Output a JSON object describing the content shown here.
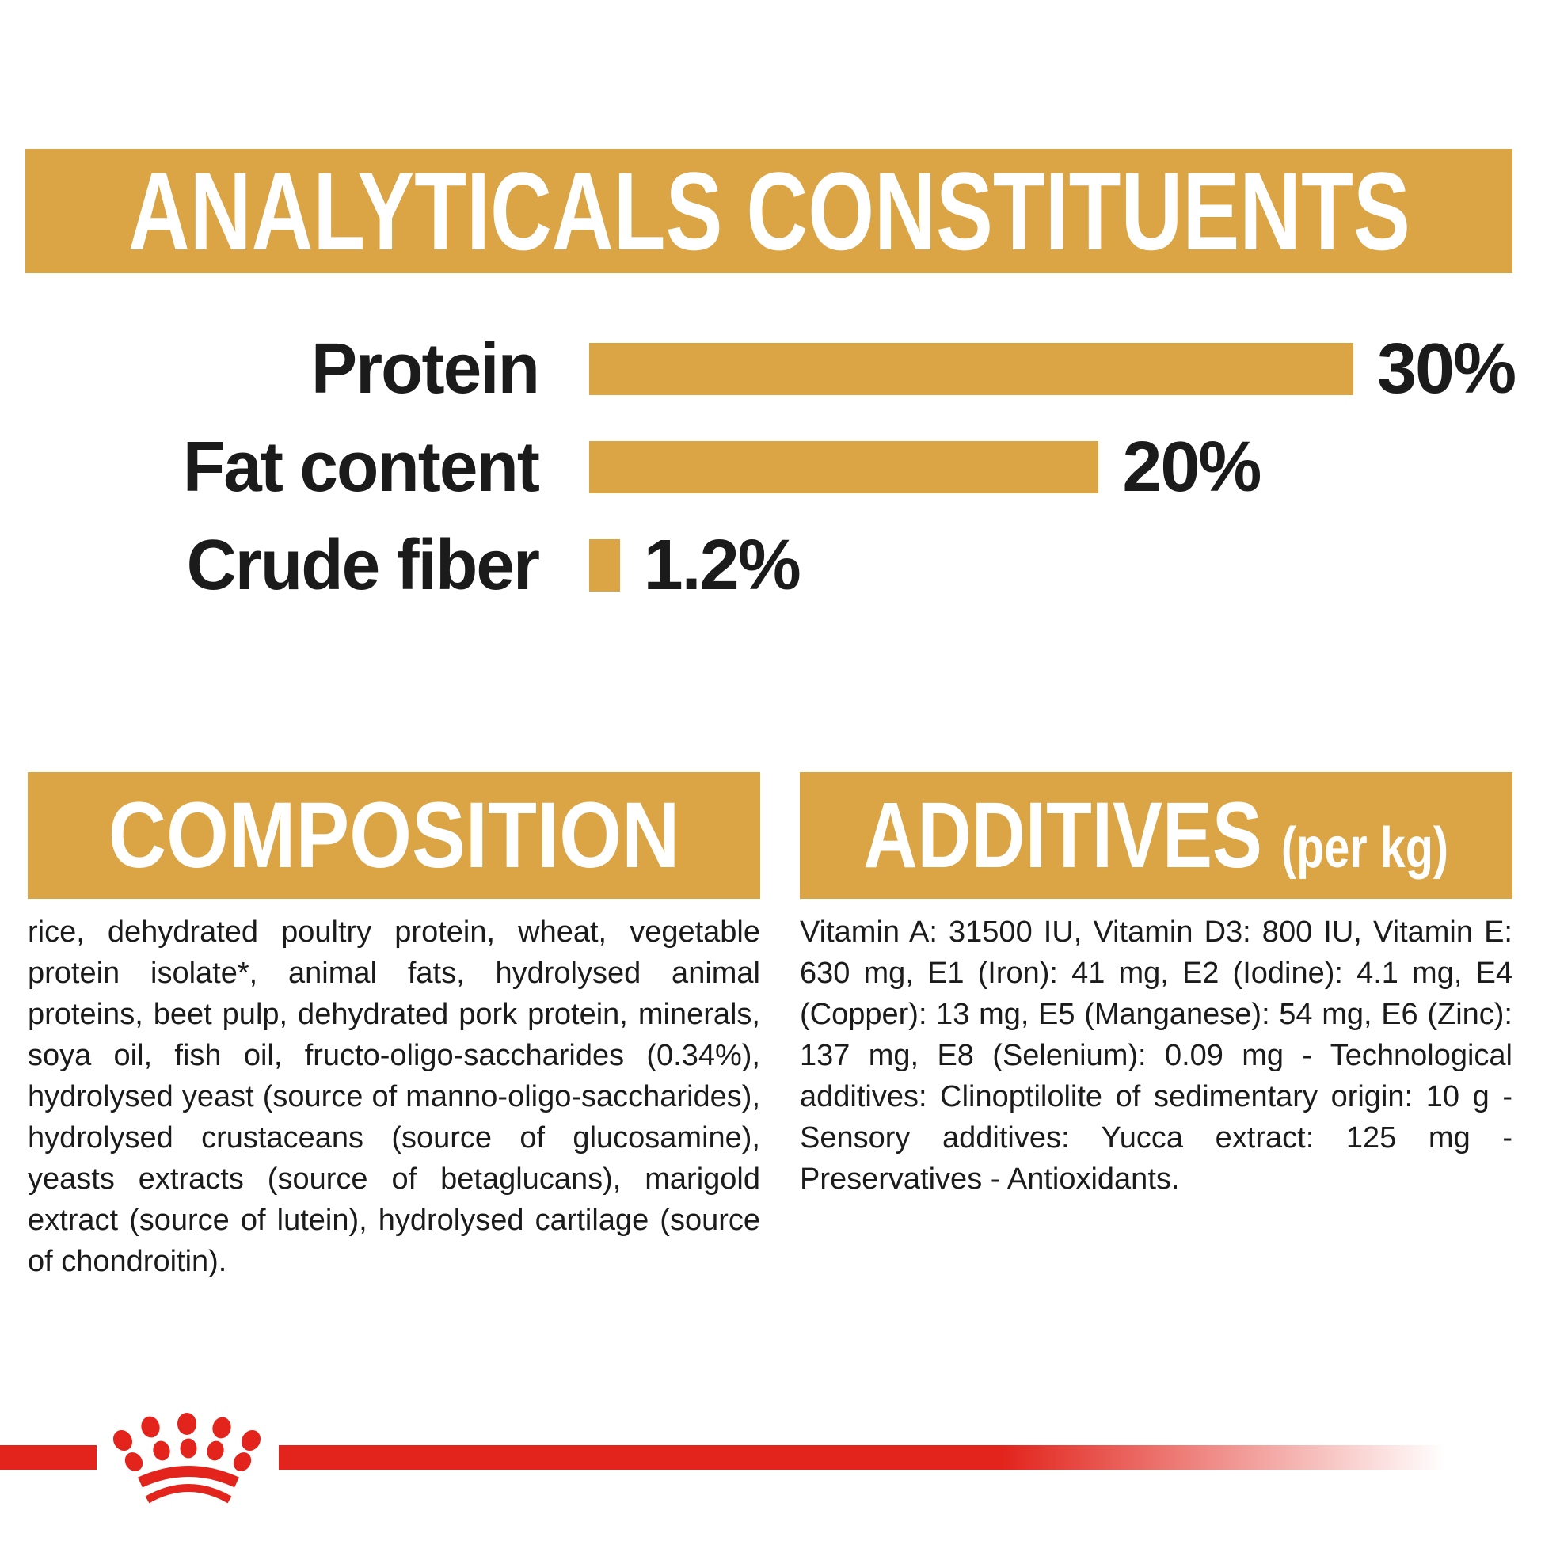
{
  "colors": {
    "gold": "#DBA545",
    "red": "#E2241C",
    "text": "#1B1B1B",
    "white": "#FFFFFF"
  },
  "analyticals": {
    "title": "ANALYTICALS CONSTITUENTS",
    "rows": [
      {
        "label": "Protein",
        "value": "30%"
      },
      {
        "label": "Fat content",
        "value": "20%"
      },
      {
        "label": "Crude fiber",
        "value": "1.2%"
      }
    ]
  },
  "composition": {
    "title": "COMPOSITION",
    "body": "rice, dehydrated poultry protein, wheat, vegetable protein isolate*, animal fats, hydrolysed animal proteins, beet pulp, dehydrated pork protein, minerals, soya oil, fish oil, fructo-oligo-saccharides (0.34%), hydrolysed yeast (source of manno-oligo-saccharides), hydrolysed crustaceans (source of glucosamine), yeasts extracts (source of betaglucans), marigold extract (source of lutein), hydrolysed cartilage (source of chondroitin)."
  },
  "additives": {
    "title": "ADDITIVES",
    "unit": "(per kg)",
    "body": "Vitamin A: 31500 IU, Vitamin D3: 800 IU, Vitamin E: 630 mg, E1 (Iron): 41 mg, E2 (Iodine): 4.1 mg, E4 (Copper): 13 mg, E5 (Manganese): 54 mg, E6 (Zinc): 137 mg, E8 (Selenium): 0.09 mg - Technological additives: Clinoptilolite of sedimentary origin: 10 g - Sensory additives: Yucca extract: 125 mg - Preservatives - Antioxidants."
  },
  "footer": {
    "logo": "royal-canin-crown-paw"
  },
  "chart_data": {
    "type": "bar",
    "orientation": "horizontal",
    "title": "ANALYTICALS CONSTITUENTS",
    "categories": [
      "Protein",
      "Fat content",
      "Crude fiber"
    ],
    "values": [
      30,
      20,
      1.2
    ],
    "value_labels": [
      "30%",
      "20%",
      "1.2%"
    ],
    "unit": "%",
    "xlim": [
      0,
      30
    ],
    "grid": false,
    "legend": false,
    "bar_color": "#DBA545"
  }
}
